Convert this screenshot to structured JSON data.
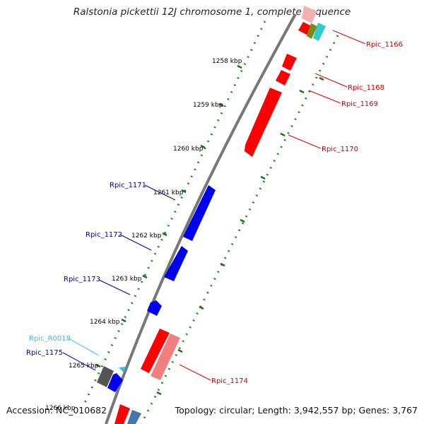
{
  "title": "Ralstonia pickettii 12J chromosome 1, complete sequence",
  "accession_text": "Accession: NC_010682",
  "topology_text": "Topology: circular; Length: 3,942,557 bp; Genes: 3,767",
  "ticks": [
    "1258 kbp",
    "1259 kbp",
    "1260 kbp",
    "1261 kbp",
    "1262 kbp",
    "1263 kbp",
    "1264 kbp",
    "1265 kbp"
  ],
  "tick_labels_partial": [
    "1266 kbp"
  ],
  "genes": [
    {
      "id": "Rpic_1166",
      "label": "Rpic_1166",
      "color": "#cc0000"
    },
    {
      "id": "Rpic_1168",
      "label": "Rpic_1168",
      "color": "#cc0000"
    },
    {
      "id": "Rpic_1169",
      "label": "Rpic_1169",
      "color": "#cc0000"
    },
    {
      "id": "Rpic_1170",
      "label": "Rpic_1170",
      "color": "#cc0000"
    },
    {
      "id": "Rpic_1171",
      "label": "Rpic_1171",
      "color": "#0000aa"
    },
    {
      "id": "Rpic_1172",
      "label": "Rpic_1172",
      "color": "#0000aa"
    },
    {
      "id": "Rpic_1173",
      "label": "Rpic_1173",
      "color": "#0000aa"
    },
    {
      "id": "Rpic_R0018",
      "label": "Rpic_R0018",
      "color": "#33bbee"
    },
    {
      "id": "Rpic_1175",
      "label": "Rpic_1175",
      "color": "#0000aa"
    },
    {
      "id": "Rpic_1174",
      "label": "Rpic_1174",
      "color": "#cc0000"
    }
  ],
  "colors": {
    "forward_strand": "#ff0000",
    "reverse_strand": "#0000ee",
    "pseudo": "#f08080",
    "backbone": "#777777",
    "dotted_track": "#228b22"
  }
}
